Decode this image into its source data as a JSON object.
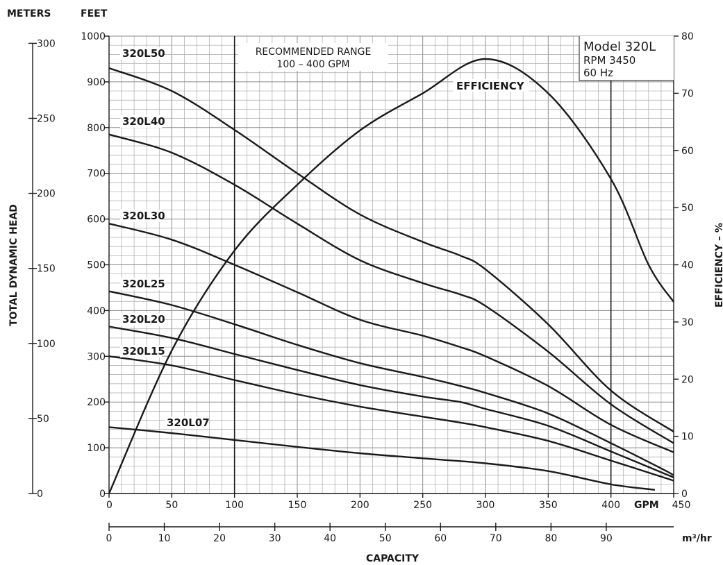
{
  "chart_data": {
    "type": "line",
    "model_box": {
      "title": "Model 320L",
      "rpm": "RPM 3450",
      "hz": "60 Hz"
    },
    "recommended_range": {
      "line1": "RECOMMENDED RANGE",
      "line2": "100 – 400 GPM",
      "from": 100,
      "to": 400
    },
    "efficiency_label": "EFFICIENCY",
    "axis_labels": {
      "meters": "METERS",
      "feet": "FEET",
      "left_title": "TOTAL DYNAMIC HEAD",
      "right_title": "EFFICIENCY – %",
      "gpm": "GPM",
      "m3hr": "m³/hr",
      "capacity": "CAPACITY"
    },
    "x_gpm": {
      "range": [
        0,
        450
      ],
      "ticks": [
        0,
        50,
        100,
        150,
        200,
        250,
        300,
        350,
        400,
        450
      ]
    },
    "x_m3hr": {
      "ticks": [
        0,
        10,
        20,
        30,
        40,
        50,
        60,
        70,
        80,
        90
      ]
    },
    "y_feet": {
      "range": [
        0,
        1000
      ],
      "ticks": [
        0,
        100,
        200,
        300,
        400,
        500,
        600,
        700,
        800,
        900,
        1000
      ]
    },
    "y_meters": {
      "ticks": [
        0,
        50,
        100,
        150,
        200,
        250,
        300
      ]
    },
    "y_efficiency": {
      "range": [
        0,
        80
      ],
      "ticks": [
        0,
        10,
        20,
        30,
        40,
        50,
        60,
        70,
        80
      ]
    },
    "series": [
      {
        "name": "320L50",
        "points": [
          [
            0,
            930
          ],
          [
            50,
            880
          ],
          [
            100,
            795
          ],
          [
            150,
            700
          ],
          [
            200,
            610
          ],
          [
            250,
            550
          ],
          [
            280,
            520
          ],
          [
            300,
            490
          ],
          [
            350,
            370
          ],
          [
            400,
            225
          ],
          [
            450,
            135
          ]
        ]
      },
      {
        "name": "320L40",
        "points": [
          [
            0,
            785
          ],
          [
            50,
            745
          ],
          [
            100,
            675
          ],
          [
            150,
            590
          ],
          [
            200,
            510
          ],
          [
            250,
            460
          ],
          [
            280,
            435
          ],
          [
            300,
            410
          ],
          [
            350,
            310
          ],
          [
            400,
            195
          ],
          [
            450,
            110
          ]
        ]
      },
      {
        "name": "320L30",
        "points": [
          [
            0,
            590
          ],
          [
            50,
            555
          ],
          [
            100,
            500
          ],
          [
            150,
            440
          ],
          [
            200,
            380
          ],
          [
            250,
            345
          ],
          [
            280,
            320
          ],
          [
            300,
            300
          ],
          [
            350,
            235
          ],
          [
            400,
            150
          ],
          [
            450,
            90
          ]
        ]
      },
      {
        "name": "320L25",
        "points": [
          [
            0,
            442
          ],
          [
            50,
            412
          ],
          [
            100,
            370
          ],
          [
            150,
            325
          ],
          [
            200,
            285
          ],
          [
            250,
            255
          ],
          [
            280,
            235
          ],
          [
            300,
            220
          ],
          [
            350,
            175
          ],
          [
            400,
            110
          ],
          [
            440,
            55
          ],
          [
            450,
            40
          ]
        ]
      },
      {
        "name": "320L20",
        "points": [
          [
            0,
            365
          ],
          [
            50,
            340
          ],
          [
            100,
            305
          ],
          [
            150,
            270
          ],
          [
            200,
            237
          ],
          [
            250,
            212
          ],
          [
            280,
            200
          ],
          [
            300,
            185
          ],
          [
            350,
            148
          ],
          [
            400,
            92
          ],
          [
            450,
            35
          ]
        ]
      },
      {
        "name": "320L15",
        "points": [
          [
            0,
            300
          ],
          [
            50,
            280
          ],
          [
            100,
            248
          ],
          [
            150,
            217
          ],
          [
            200,
            190
          ],
          [
            250,
            168
          ],
          [
            280,
            155
          ],
          [
            300,
            145
          ],
          [
            350,
            115
          ],
          [
            400,
            72
          ],
          [
            450,
            28
          ]
        ]
      },
      {
        "name": "320L07",
        "points": [
          [
            0,
            145
          ],
          [
            50,
            132
          ],
          [
            100,
            117
          ],
          [
            150,
            102
          ],
          [
            200,
            88
          ],
          [
            250,
            77
          ],
          [
            300,
            66
          ],
          [
            350,
            49
          ],
          [
            400,
            20
          ],
          [
            435,
            8
          ]
        ]
      }
    ],
    "efficiency": {
      "name": "EFFICIENCY",
      "points": [
        [
          0,
          0
        ],
        [
          50,
          25
        ],
        [
          100,
          42.5
        ],
        [
          150,
          54
        ],
        [
          200,
          63.5
        ],
        [
          250,
          70
        ],
        [
          300,
          76
        ],
        [
          350,
          70
        ],
        [
          400,
          55
        ],
        [
          430,
          40
        ],
        [
          450,
          33.5
        ]
      ]
    }
  }
}
